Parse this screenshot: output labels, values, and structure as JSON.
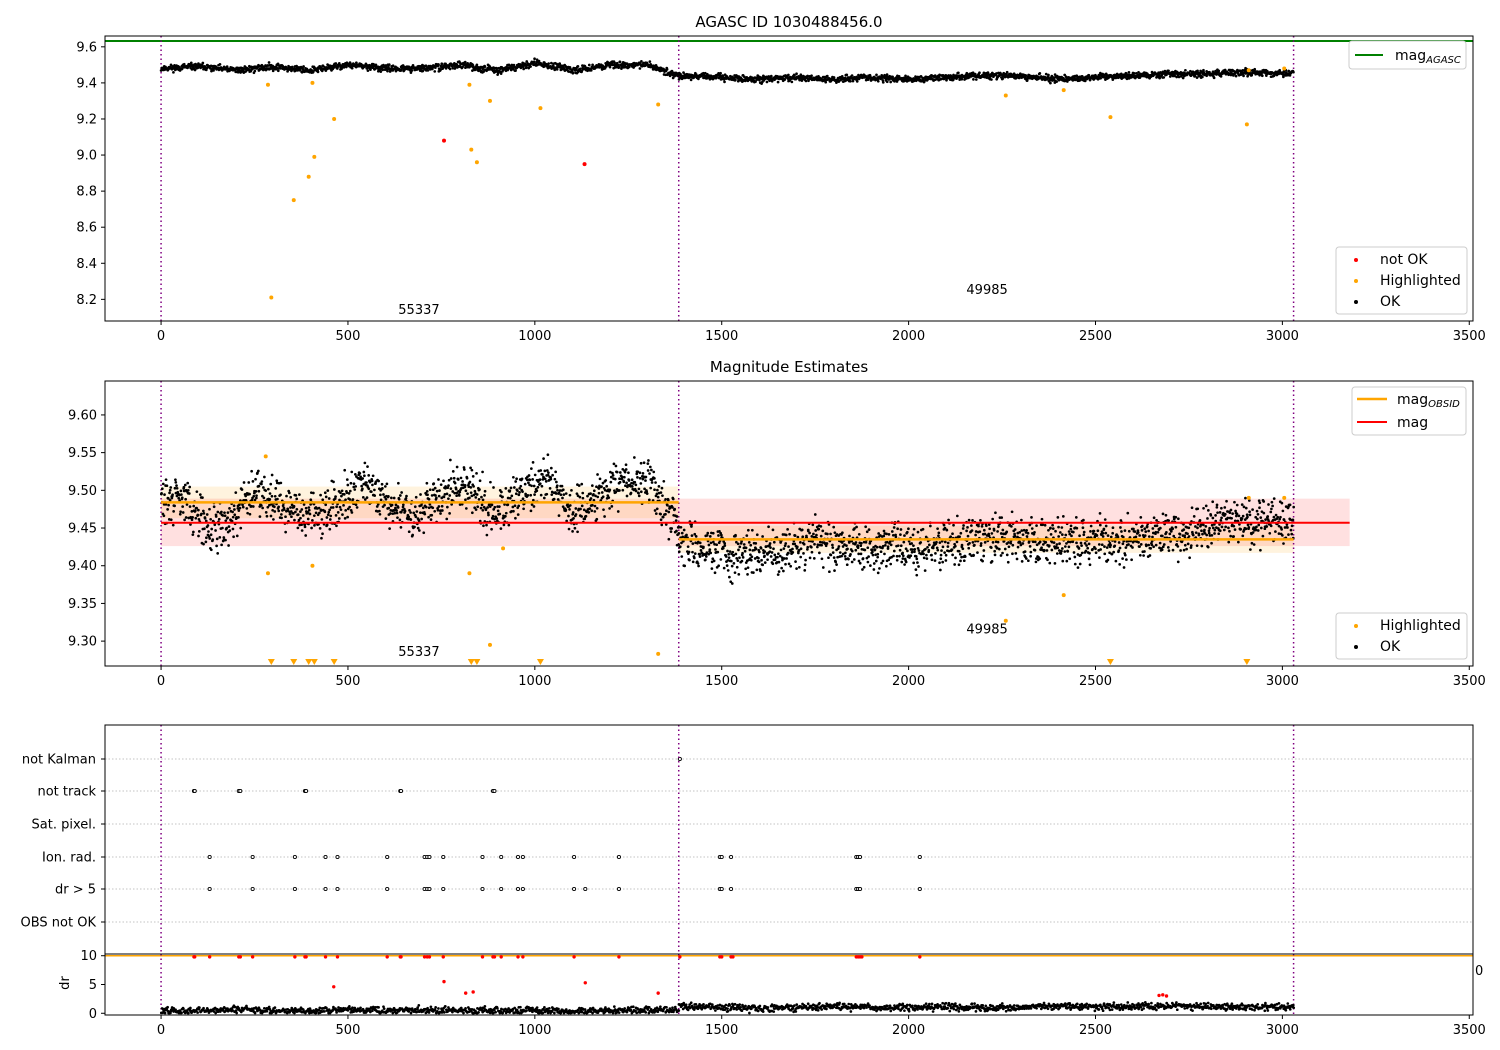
{
  "chart_data": [
    {
      "type": "scatter",
      "title": "AGASC ID 1030488456.0",
      "xlim": [
        -150,
        3510
      ],
      "ylim": [
        8.08,
        9.66
      ],
      "xticks": [
        "0",
        "500",
        "1000",
        "1500",
        "2000",
        "2500",
        "3000",
        "3500"
      ],
      "yticks": [
        "8.2",
        "8.4",
        "8.6",
        "8.8",
        "9.0",
        "9.2",
        "9.4",
        "9.6"
      ],
      "grid": false,
      "vlines": [
        0,
        1385,
        3030
      ],
      "hline": {
        "name": "mag_AGASC",
        "y": 9.632,
        "color": "#008000"
      },
      "segment_labels": [
        {
          "text": "55337",
          "x": 690,
          "y": 8.12
        },
        {
          "text": "49985",
          "x": 2210,
          "y": 8.23
        }
      ],
      "ok_curve": {
        "name": "OK",
        "color": "#000000",
        "segments": [
          {
            "x": [
              0,
              100,
              200,
              300,
              400,
              500,
              600,
              700,
              800,
              900,
              1000,
              1100,
              1200,
              1300,
              1385
            ],
            "y": [
              9.48,
              9.49,
              9.47,
              9.49,
              9.47,
              9.5,
              9.48,
              9.48,
              9.5,
              9.47,
              9.51,
              9.47,
              9.5,
              9.5,
              9.44
            ]
          },
          {
            "x": [
              1385,
              1500,
              1600,
              1700,
              1800,
              1900,
              2000,
              2100,
              2200,
              2300,
              2400,
              2500,
              2600,
              2700,
              2800,
              2900,
              3030
            ],
            "y": [
              9.44,
              9.43,
              9.42,
              9.43,
              9.42,
              9.43,
              9.42,
              9.43,
              9.44,
              9.44,
              9.42,
              9.43,
              9.44,
              9.45,
              9.45,
              9.46,
              9.45
            ]
          }
        ]
      },
      "series": [
        {
          "name": "Highlighted",
          "color": "#ffa500",
          "points": [
            [
              286,
              9.39
            ],
            [
              295,
              8.21
            ],
            [
              355,
              8.75
            ],
            [
              395,
              8.88
            ],
            [
              405,
              9.4
            ],
            [
              410,
              8.99
            ],
            [
              463,
              9.2
            ],
            [
              825,
              9.39
            ],
            [
              830,
              9.03
            ],
            [
              845,
              8.96
            ],
            [
              880,
              9.3
            ],
            [
              1015,
              9.26
            ],
            [
              1330,
              9.28
            ],
            [
              2260,
              9.33
            ],
            [
              2415,
              9.36
            ],
            [
              2540,
              9.21
            ],
            [
              2905,
              9.17
            ],
            [
              2910,
              9.47
            ],
            [
              3005,
              9.48
            ]
          ]
        },
        {
          "name": "not OK",
          "color": "#ff0000",
          "points": [
            [
              757,
              9.08
            ],
            [
              1133,
              8.95
            ]
          ]
        }
      ],
      "legends": [
        {
          "position": "top-right",
          "entries": [
            "mag_AGASC"
          ]
        },
        {
          "position": "lower-right",
          "entries": [
            "not OK",
            "Highlighted",
            "OK"
          ]
        }
      ]
    },
    {
      "type": "scatter",
      "title": "Magnitude Estimates",
      "xlim": [
        -150,
        3510
      ],
      "ylim": [
        9.267,
        9.645
      ],
      "xticks": [
        "0",
        "500",
        "1000",
        "1500",
        "2000",
        "2500",
        "3000",
        "3500"
      ],
      "yticks": [
        "9.30",
        "9.35",
        "9.40",
        "9.45",
        "9.50",
        "9.55",
        "9.60"
      ],
      "grid": false,
      "vlines": [
        0,
        1385,
        3030
      ],
      "segment_labels": [
        {
          "text": "55337",
          "x": 690,
          "y": 9.28
        },
        {
          "text": "49985",
          "x": 2210,
          "y": 9.31
        }
      ],
      "mag": {
        "name": "mag",
        "value": 9.457,
        "band": [
          9.426,
          9.489
        ],
        "x_range": [
          0,
          3180
        ],
        "color": "#ff0000"
      },
      "mag_obsid": [
        {
          "x_range": [
            0,
            1385
          ],
          "value": 9.484,
          "band": [
            9.463,
            9.505
          ]
        },
        {
          "x_range": [
            1385,
            3030
          ],
          "value": 9.435,
          "band": [
            9.417,
            9.453
          ]
        }
      ],
      "ok_curve": {
        "name": "OK",
        "color": "#000000",
        "segments": [
          {
            "x": [
              0,
              60,
              130,
              200,
              260,
              330,
              400,
              470,
              540,
              610,
              680,
              760,
              820,
              890,
              960,
              1030,
              1100,
              1160,
              1230,
              1300,
              1340,
              1385
            ],
            "y": [
              9.485,
              9.49,
              9.445,
              9.47,
              9.505,
              9.475,
              9.465,
              9.48,
              9.51,
              9.48,
              9.465,
              9.495,
              9.51,
              9.47,
              9.495,
              9.515,
              9.47,
              9.49,
              9.51,
              9.51,
              9.48,
              9.45
            ]
          },
          {
            "x": [
              1385,
              1450,
              1550,
              1650,
              1750,
              1850,
              1950,
              2050,
              2150,
              2250,
              2350,
              2450,
              2550,
              2650,
              2750,
              2850,
              2950,
              3030
            ],
            "y": [
              9.43,
              9.425,
              9.41,
              9.42,
              9.43,
              9.425,
              9.425,
              9.425,
              9.43,
              9.44,
              9.43,
              9.435,
              9.43,
              9.44,
              9.445,
              9.455,
              9.46,
              9.455
            ]
          }
        ]
      },
      "series": [
        {
          "name": "Highlighted",
          "color": "#ffa500",
          "points": [
            [
              280,
              9.545
            ],
            [
              286,
              9.39
            ],
            [
              405,
              9.4
            ],
            [
              825,
              9.39
            ],
            [
              880,
              9.295
            ],
            [
              915,
              9.423
            ],
            [
              1330,
              9.283
            ],
            [
              2260,
              9.327
            ],
            [
              2415,
              9.361
            ],
            [
              2910,
              9.49
            ],
            [
              3005,
              9.49
            ]
          ]
        },
        {
          "name": "Highlighted (out of range)",
          "color": "#ffa500",
          "marker": "triangle-down",
          "points": [
            [
              295,
              9.27
            ],
            [
              355,
              9.27
            ],
            [
              395,
              9.27
            ],
            [
              410,
              9.27
            ],
            [
              463,
              9.27
            ],
            [
              830,
              9.27
            ],
            [
              845,
              9.27
            ],
            [
              1015,
              9.27
            ],
            [
              2540,
              9.27
            ],
            [
              2905,
              9.27
            ]
          ]
        }
      ],
      "legends": [
        {
          "position": "top-right",
          "entries": [
            "mag_OBSID",
            "mag"
          ]
        },
        {
          "position": "lower-right",
          "entries": [
            "Highlighted",
            "OK"
          ]
        }
      ]
    },
    {
      "type": "scatter",
      "title": "",
      "xlim": [
        -150,
        3510
      ],
      "categories": [
        "not Kalman",
        "not track",
        "Sat. pixel.",
        "Ion. rad.",
        "dr > 5",
        "OBS not OK"
      ],
      "vlines": [
        0,
        1385,
        3030
      ],
      "grid": true,
      "flags": {
        "not Kalman": [
          1388
        ],
        "not track": [
          88,
          90,
          208,
          212,
          385,
          388,
          640,
          642,
          888,
          892
        ],
        "Sat. pixel.": [],
        "Ion. rad.": [
          130,
          245,
          358,
          440,
          472,
          605,
          705,
          712,
          718,
          755,
          860,
          910,
          955,
          968,
          1105,
          1225,
          1495,
          1500,
          1525,
          1860,
          1865,
          1870,
          2030
        ],
        "dr > 5": [
          130,
          245,
          358,
          440,
          472,
          605,
          705,
          712,
          718,
          755,
          860,
          910,
          955,
          968,
          1105,
          1135,
          1225,
          1495,
          1500,
          1525,
          1860,
          1865,
          1870,
          2030
        ],
        "OBS not OK": []
      }
    },
    {
      "type": "scatter",
      "ylabel": "dr",
      "xlim": [
        -150,
        3510
      ],
      "ylim": [
        -0.3,
        10.3
      ],
      "yticks": [
        "0",
        "5",
        "10"
      ],
      "xticks": [
        "0",
        "500",
        "1000",
        "1500",
        "2000",
        "2500",
        "3000",
        "3500"
      ],
      "hline": {
        "y": 10,
        "color": "#ffa500"
      },
      "edge_label": "0",
      "ok_curve": {
        "name": "OK",
        "color": "#000000",
        "segments": [
          {
            "x": [
              0,
              100,
              200,
              300,
              400,
              500,
              600,
              700,
              800,
              900,
              1000,
              1100,
              1200,
              1300,
              1385
            ],
            "y": [
              0.5,
              0.4,
              0.7,
              0.5,
              0.4,
              0.6,
              0.5,
              0.6,
              0.5,
              0.4,
              0.5,
              0.4,
              0.5,
              0.6,
              0.5
            ]
          },
          {
            "x": [
              1385,
              1500,
              1600,
              1700,
              1800,
              1900,
              2000,
              2100,
              2200,
              2300,
              2400,
              2500,
              2600,
              2700,
              2800,
              2900,
              3030
            ],
            "y": [
              1.5,
              1.0,
              0.8,
              1.0,
              1.2,
              1.0,
              1.0,
              1.1,
              0.9,
              1.0,
              1.3,
              1.0,
              1.2,
              1.3,
              1.1,
              1.0,
              1.2
            ]
          }
        ]
      },
      "series": [
        {
          "name": "dr > 5",
          "color": "#ff0000",
          "points": [
            [
              88,
              9.8
            ],
            [
              90,
              9.8
            ],
            [
              130,
              9.8
            ],
            [
              208,
              9.8
            ],
            [
              212,
              9.8
            ],
            [
              245,
              9.8
            ],
            [
              358,
              9.8
            ],
            [
              385,
              9.8
            ],
            [
              388,
              9.8
            ],
            [
              440,
              9.8
            ],
            [
              472,
              9.8
            ],
            [
              605,
              9.8
            ],
            [
              640,
              9.8
            ],
            [
              642,
              9.8
            ],
            [
              705,
              9.8
            ],
            [
              712,
              9.8
            ],
            [
              718,
              9.8
            ],
            [
              755,
              9.8
            ],
            [
              860,
              9.8
            ],
            [
              888,
              9.8
            ],
            [
              892,
              9.8
            ],
            [
              910,
              9.8
            ],
            [
              955,
              9.8
            ],
            [
              968,
              9.8
            ],
            [
              1105,
              9.8
            ],
            [
              1225,
              9.8
            ],
            [
              1388,
              9.8
            ],
            [
              1495,
              9.8
            ],
            [
              1500,
              9.8
            ],
            [
              1525,
              9.8
            ],
            [
              1530,
              9.8
            ],
            [
              1860,
              9.8
            ],
            [
              1865,
              9.8
            ],
            [
              1870,
              9.8
            ],
            [
              1875,
              9.8
            ],
            [
              2030,
              9.8
            ],
            [
              462,
              4.6
            ],
            [
              757,
              5.5
            ],
            [
              1135,
              5.3
            ],
            [
              1330,
              3.5
            ],
            [
              2670,
              3.1
            ],
            [
              2680,
              3.2
            ],
            [
              2690,
              3.0
            ],
            [
              815,
              3.5
            ],
            [
              835,
              3.7
            ]
          ]
        }
      ]
    }
  ]
}
